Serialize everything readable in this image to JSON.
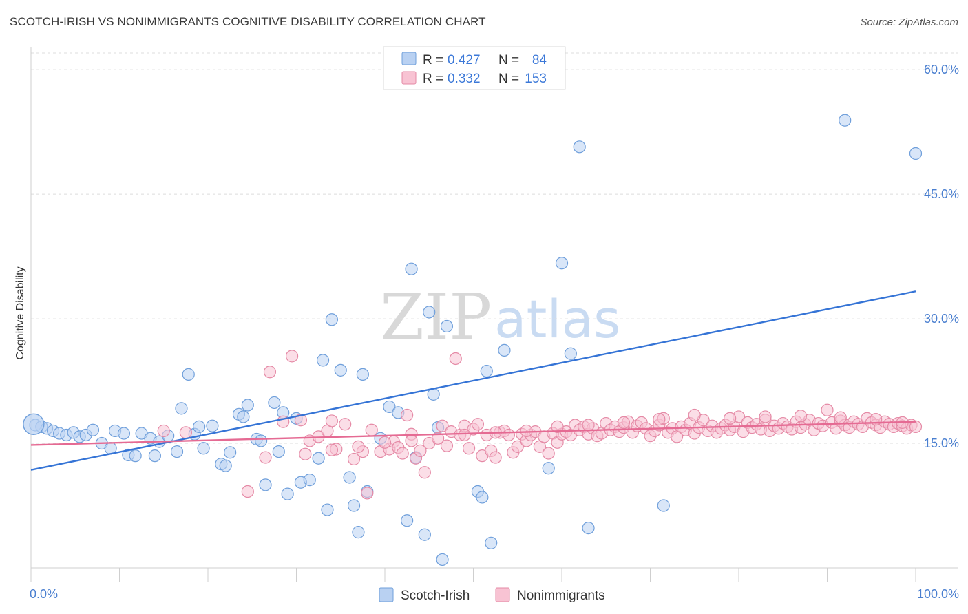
{
  "header": {
    "title": "SCOTCH-IRISH VS NONIMMIGRANTS COGNITIVE DISABILITY CORRELATION CHART",
    "source": "Source: ZipAtlas.com"
  },
  "watermark": {
    "zip": "ZIP",
    "atlas": "atlas"
  },
  "legend": {
    "r_label": "R =",
    "n_label": "N =",
    "entries": [
      {
        "r": "0.427",
        "n": "84",
        "fill": "#b9d1f2",
        "stroke": "#6f9fdb"
      },
      {
        "r": "0.332",
        "n": "153",
        "fill": "#f8c3d3",
        "stroke": "#e58aa6"
      }
    ]
  },
  "chart_data": {
    "type": "scatter",
    "xlabel": "",
    "ylabel": "Cognitive Disability",
    "xlim": [
      0,
      100
    ],
    "ylim": [
      0,
      62
    ],
    "x_tick_labels": [
      {
        "value": 0,
        "label": "0.0%"
      },
      {
        "value": 100,
        "label": "100.0%"
      }
    ],
    "y_tick_labels": [
      {
        "value": 15,
        "label": "15.0%"
      },
      {
        "value": 30,
        "label": "30.0%"
      },
      {
        "value": 45,
        "label": "45.0%"
      },
      {
        "value": 60,
        "label": "60.0%"
      }
    ],
    "grid": true,
    "series": [
      {
        "name": "Scotch-Irish",
        "color": "#6f9fdb",
        "fill": "#b9d1f2",
        "line_color": "#3574d6",
        "trend": {
          "x": [
            0,
            100
          ],
          "y": [
            11.8,
            33.3
          ]
        },
        "points": [
          [
            0.5,
            17.2
          ],
          [
            1.2,
            17.0
          ],
          [
            1.8,
            16.8
          ],
          [
            2.5,
            16.5
          ],
          [
            3.2,
            16.2
          ],
          [
            4.0,
            16.0
          ],
          [
            4.8,
            16.3
          ],
          [
            5.5,
            15.8
          ],
          [
            6.2,
            16.0
          ],
          [
            7.0,
            16.6
          ],
          [
            8.0,
            15.0
          ],
          [
            9.0,
            14.4
          ],
          [
            9.5,
            16.5
          ],
          [
            10.5,
            16.2
          ],
          [
            11.0,
            13.6
          ],
          [
            11.8,
            13.5
          ],
          [
            12.5,
            16.2
          ],
          [
            13.5,
            15.6
          ],
          [
            14.0,
            13.5
          ],
          [
            14.5,
            15.2
          ],
          [
            15.5,
            15.9
          ],
          [
            16.5,
            14.0
          ],
          [
            17.0,
            19.2
          ],
          [
            17.8,
            23.3
          ],
          [
            18.5,
            16.1
          ],
          [
            19.0,
            17.0
          ],
          [
            19.5,
            14.4
          ],
          [
            20.5,
            17.1
          ],
          [
            21.5,
            12.5
          ],
          [
            22.0,
            12.3
          ],
          [
            22.5,
            13.9
          ],
          [
            23.5,
            18.5
          ],
          [
            24.0,
            18.2
          ],
          [
            24.5,
            19.6
          ],
          [
            25.5,
            15.5
          ],
          [
            26.0,
            15.3
          ],
          [
            26.5,
            10.0
          ],
          [
            27.5,
            19.9
          ],
          [
            28.0,
            14.0
          ],
          [
            28.5,
            18.7
          ],
          [
            29.0,
            8.9
          ],
          [
            30.0,
            18.0
          ],
          [
            30.5,
            10.3
          ],
          [
            31.5,
            10.6
          ],
          [
            32.5,
            13.2
          ],
          [
            33.0,
            25.0
          ],
          [
            33.5,
            7.0
          ],
          [
            34.0,
            29.9
          ],
          [
            35.0,
            23.8
          ],
          [
            36.0,
            10.9
          ],
          [
            36.5,
            7.5
          ],
          [
            37.0,
            4.3
          ],
          [
            37.5,
            23.3
          ],
          [
            38.0,
            9.2
          ],
          [
            39.5,
            15.6
          ],
          [
            40.5,
            19.4
          ],
          [
            41.5,
            18.7
          ],
          [
            42.5,
            5.7
          ],
          [
            43.0,
            36.0
          ],
          [
            43.5,
            13.3
          ],
          [
            44.5,
            4.0
          ],
          [
            45.0,
            30.8
          ],
          [
            45.5,
            20.9
          ],
          [
            46.0,
            16.9
          ],
          [
            46.5,
            1.0
          ],
          [
            47.0,
            29.1
          ],
          [
            50.5,
            9.2
          ],
          [
            51.0,
            8.5
          ],
          [
            51.5,
            23.7
          ],
          [
            52.0,
            3.0
          ],
          [
            53.5,
            26.2
          ],
          [
            58.5,
            12.0
          ],
          [
            60.0,
            36.7
          ],
          [
            61.0,
            25.8
          ],
          [
            62.0,
            50.7
          ],
          [
            63.0,
            4.8
          ],
          [
            71.5,
            7.5
          ],
          [
            92.0,
            53.9
          ],
          [
            100.0,
            49.9
          ]
        ],
        "large_points": [
          [
            0.3,
            17.3
          ]
        ]
      },
      {
        "name": "Nonimmigrants",
        "color": "#e58aa6",
        "fill": "#f8c3d3",
        "line_color": "#e56a93",
        "trend": {
          "x": [
            0,
            100
          ],
          "y": [
            14.8,
            17.6
          ]
        },
        "points": [
          [
            15.0,
            16.5
          ],
          [
            17.5,
            16.3
          ],
          [
            24.5,
            9.2
          ],
          [
            27.0,
            23.6
          ],
          [
            28.5,
            17.6
          ],
          [
            29.5,
            25.5
          ],
          [
            30.5,
            17.8
          ],
          [
            31.5,
            15.3
          ],
          [
            32.5,
            15.8
          ],
          [
            33.5,
            16.5
          ],
          [
            34.0,
            17.7
          ],
          [
            34.5,
            14.3
          ],
          [
            35.5,
            17.3
          ],
          [
            36.5,
            13.1
          ],
          [
            37.5,
            14.0
          ],
          [
            38.0,
            9.0
          ],
          [
            38.5,
            16.6
          ],
          [
            39.5,
            14.0
          ],
          [
            40.5,
            14.3
          ],
          [
            41.0,
            15.2
          ],
          [
            41.5,
            14.5
          ],
          [
            42.0,
            13.8
          ],
          [
            42.5,
            18.4
          ],
          [
            43.0,
            16.1
          ],
          [
            43.5,
            13.2
          ],
          [
            44.0,
            14.1
          ],
          [
            44.5,
            11.5
          ],
          [
            45.0,
            15.0
          ],
          [
            46.5,
            17.1
          ],
          [
            47.0,
            14.7
          ],
          [
            47.5,
            16.4
          ],
          [
            48.0,
            25.2
          ],
          [
            48.5,
            16.0
          ],
          [
            49.0,
            17.1
          ],
          [
            49.5,
            14.4
          ],
          [
            50.0,
            16.7
          ],
          [
            50.5,
            17.3
          ],
          [
            51.0,
            13.5
          ],
          [
            51.5,
            16.0
          ],
          [
            52.0,
            14.1
          ],
          [
            52.5,
            13.3
          ],
          [
            53.0,
            16.3
          ],
          [
            53.5,
            16.5
          ],
          [
            54.0,
            16.0
          ],
          [
            54.5,
            13.9
          ],
          [
            55.0,
            14.6
          ],
          [
            55.5,
            16.1
          ],
          [
            56.0,
            15.3
          ],
          [
            56.5,
            16.0
          ],
          [
            57.0,
            16.4
          ],
          [
            57.5,
            14.6
          ],
          [
            58.0,
            15.8
          ],
          [
            58.5,
            13.8
          ],
          [
            59.0,
            16.2
          ],
          [
            59.5,
            15.1
          ],
          [
            60.0,
            16.1
          ],
          [
            60.5,
            16.4
          ],
          [
            61.0,
            16.0
          ],
          [
            61.5,
            17.2
          ],
          [
            62.0,
            16.6
          ],
          [
            62.5,
            17.0
          ],
          [
            63.0,
            16.1
          ],
          [
            63.5,
            16.8
          ],
          [
            64.0,
            15.9
          ],
          [
            64.5,
            16.2
          ],
          [
            65.0,
            17.4
          ],
          [
            65.5,
            16.6
          ],
          [
            66.0,
            17.0
          ],
          [
            66.5,
            16.4
          ],
          [
            67.0,
            16.9
          ],
          [
            67.5,
            17.6
          ],
          [
            68.0,
            16.3
          ],
          [
            68.5,
            17.1
          ],
          [
            69.0,
            17.5
          ],
          [
            69.5,
            16.8
          ],
          [
            70.0,
            15.9
          ],
          [
            70.5,
            16.5
          ],
          [
            71.0,
            17.2
          ],
          [
            71.5,
            18.0
          ],
          [
            72.0,
            16.3
          ],
          [
            72.5,
            16.8
          ],
          [
            73.0,
            15.8
          ],
          [
            73.5,
            17.0
          ],
          [
            74.0,
            16.6
          ],
          [
            74.5,
            17.4
          ],
          [
            75.0,
            16.2
          ],
          [
            75.5,
            16.9
          ],
          [
            76.0,
            17.8
          ],
          [
            76.5,
            16.5
          ],
          [
            77.0,
            17.1
          ],
          [
            77.5,
            16.3
          ],
          [
            78.0,
            16.8
          ],
          [
            78.5,
            17.2
          ],
          [
            79.0,
            16.6
          ],
          [
            79.5,
            17.0
          ],
          [
            80.0,
            18.2
          ],
          [
            80.5,
            16.4
          ],
          [
            81.0,
            17.5
          ],
          [
            81.5,
            16.9
          ],
          [
            82.0,
            17.3
          ],
          [
            82.5,
            16.7
          ],
          [
            83.0,
            17.8
          ],
          [
            83.5,
            16.5
          ],
          [
            84.0,
            17.1
          ],
          [
            84.5,
            16.8
          ],
          [
            85.0,
            17.4
          ],
          [
            85.5,
            17.0
          ],
          [
            86.0,
            16.7
          ],
          [
            86.5,
            17.6
          ],
          [
            87.0,
            16.9
          ],
          [
            87.5,
            17.3
          ],
          [
            88.0,
            17.8
          ],
          [
            88.5,
            16.6
          ],
          [
            89.0,
            17.4
          ],
          [
            89.5,
            17.1
          ],
          [
            90.0,
            19.0
          ],
          [
            90.5,
            17.5
          ],
          [
            91.0,
            16.8
          ],
          [
            91.5,
            17.7
          ],
          [
            92.0,
            17.2
          ],
          [
            92.5,
            16.9
          ],
          [
            93.0,
            17.6
          ],
          [
            93.5,
            17.3
          ],
          [
            94.0,
            17.0
          ],
          [
            94.5,
            18.0
          ],
          [
            95.0,
            17.5
          ],
          [
            95.5,
            17.2
          ],
          [
            96.0,
            16.9
          ],
          [
            96.5,
            17.6
          ],
          [
            97.0,
            17.3
          ],
          [
            97.5,
            17.0
          ],
          [
            98.0,
            17.4
          ],
          [
            98.5,
            17.1
          ],
          [
            99.0,
            16.8
          ],
          [
            99.5,
            17.2
          ],
          [
            100.0,
            17.0
          ],
          [
            87.0,
            18.3
          ],
          [
            83.0,
            18.2
          ],
          [
            79.0,
            18.0
          ],
          [
            75.0,
            18.4
          ],
          [
            71.0,
            17.9
          ],
          [
            67.0,
            17.5
          ],
          [
            63.0,
            17.2
          ],
          [
            59.5,
            17.0
          ],
          [
            56.0,
            16.5
          ],
          [
            52.5,
            16.3
          ],
          [
            49.0,
            16.0
          ],
          [
            46.0,
            15.6
          ],
          [
            43.0,
            15.3
          ],
          [
            40.0,
            15.1
          ],
          [
            37.0,
            14.6
          ],
          [
            34.0,
            14.2
          ],
          [
            31.0,
            13.7
          ],
          [
            26.5,
            13.3
          ],
          [
            91.5,
            18.1
          ],
          [
            95.5,
            17.9
          ],
          [
            98.5,
            17.5
          ]
        ]
      }
    ],
    "legend_placement": "top-center"
  }
}
